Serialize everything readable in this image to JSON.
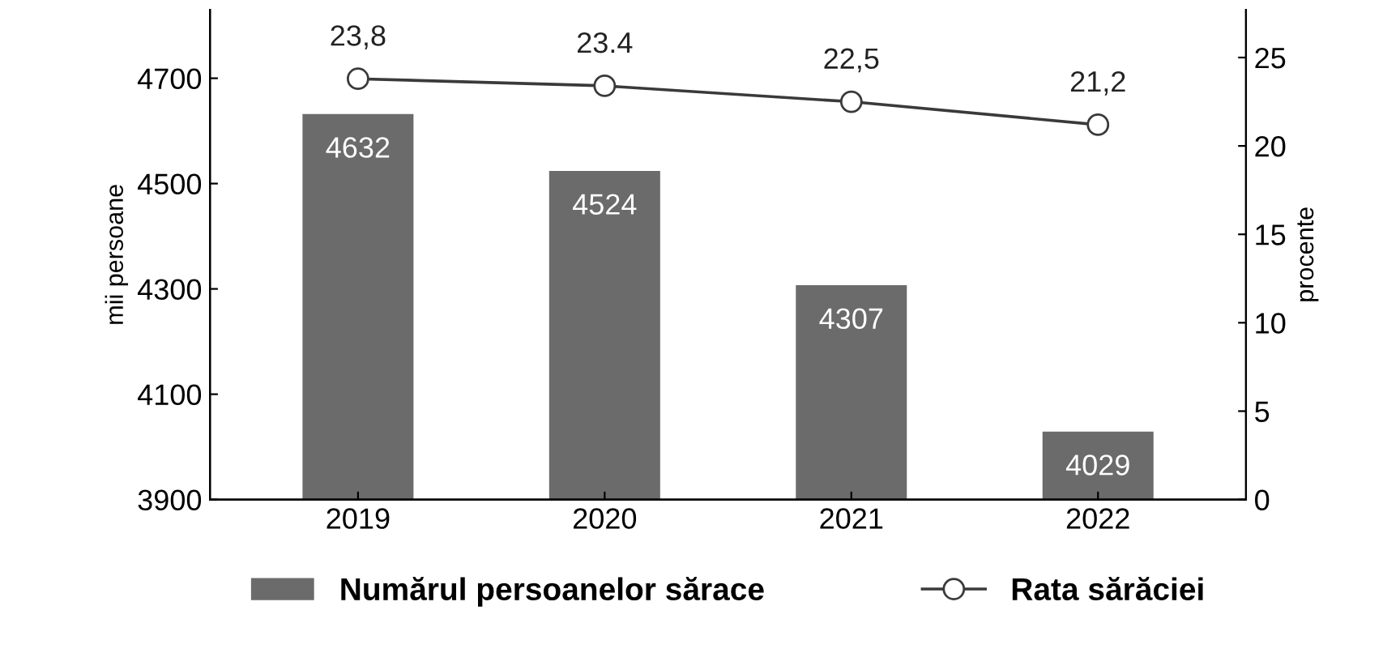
{
  "chart_data": {
    "type": "bar",
    "categories": [
      "2019",
      "2020",
      "2021",
      "2022"
    ],
    "ylabel": "mii persoane",
    "y2label": "procente",
    "ylim": [
      3900,
      4830
    ],
    "yticks": [
      3900,
      4100,
      4300,
      4500,
      4700
    ],
    "y2lim": [
      0,
      27.7
    ],
    "y2ticks": [
      0,
      5,
      10,
      15,
      20,
      25
    ],
    "series": [
      {
        "name": "Numărul persoanelor sărace",
        "color": "#6b6b6b",
        "values": [
          4632,
          4524,
          4307,
          4029
        ],
        "data_labels": true
      },
      {
        "name": "Rata sărăciei",
        "type": "line",
        "axis": "y2",
        "color": "#3a3a3a",
        "marker": "circle",
        "values": [
          23.8,
          23.4,
          22.5,
          21.2
        ],
        "value_labels": [
          "23,8",
          "23.4",
          "22,5",
          "21,2"
        ]
      }
    ],
    "legend": "bottom",
    "grid": false
  }
}
